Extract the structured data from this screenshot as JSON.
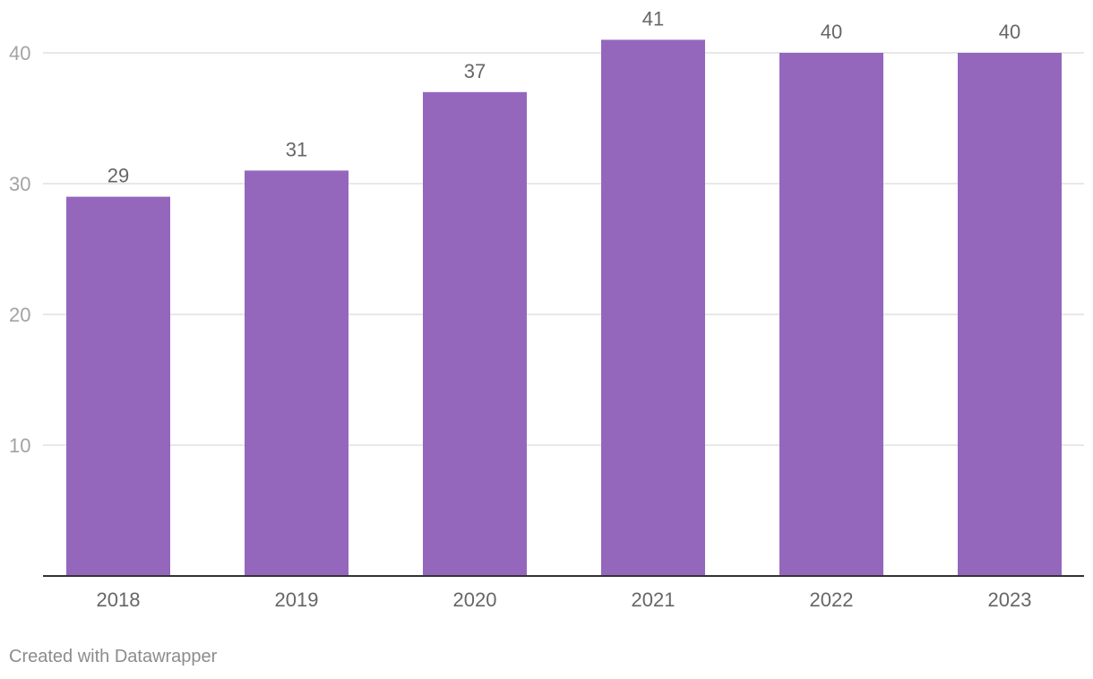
{
  "chart_data": {
    "type": "bar",
    "title": "",
    "xlabel": "",
    "ylabel": "",
    "categories": [
      "2018",
      "2019",
      "2020",
      "2021",
      "2022",
      "2023"
    ],
    "values": [
      29,
      31,
      37,
      41,
      40,
      40
    ],
    "ylim": [
      0,
      40
    ],
    "yticks": [
      "10",
      "20",
      "30",
      "40"
    ],
    "grid": true,
    "legend": "none",
    "bar_color": "#9467bd",
    "data_labels": true
  },
  "footer": {
    "credit": "Created with Datawrapper"
  }
}
